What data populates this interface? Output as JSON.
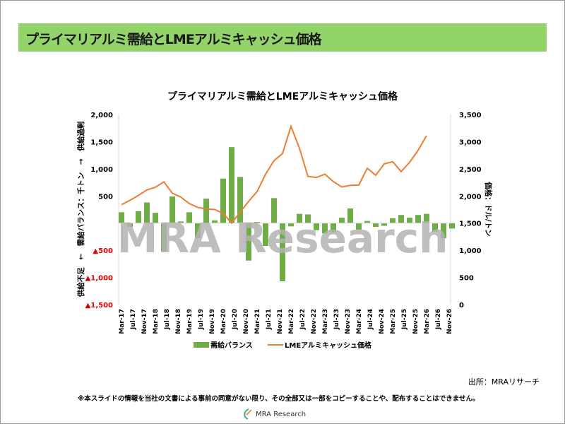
{
  "slide_title": "プライマリアルミ需給とLMEアルミキャッシュ価格",
  "source": "出所：MRAリサーチ",
  "disclaimer": "※本スライドの情報を当社の文書による事前の同意がない限り、その全部又は一部をコピーすることや、配布することはできません。",
  "logo_text": "MRA Research",
  "watermark": "MRA Research",
  "chart_data": {
    "type": "bar+line",
    "title": "プライマリアルミ需給とLMEアルミキャッシュ価格",
    "ylabel_left": "供給不足　←　需給バランス：千トン　→　供給過剰",
    "ylabel_right": "価格：ドル/トン",
    "ylim_left": [
      -1500,
      2000
    ],
    "ylim_right": [
      0,
      3500
    ],
    "left_ticks": [
      "2,000",
      "1,500",
      "1,000",
      "500",
      "",
      "▲500",
      "▲1,000",
      "▲1,500"
    ],
    "left_tick_values": [
      2000,
      1500,
      1000,
      500,
      0,
      -500,
      -1000,
      -1500
    ],
    "right_ticks": [
      "3,500",
      "3,000",
      "2,500",
      "2,000",
      "1,500",
      "1,000",
      "500",
      "0"
    ],
    "right_tick_values": [
      3500,
      3000,
      2500,
      2000,
      1500,
      1000,
      500,
      0
    ],
    "x_tick_labels": [
      "Mar-17",
      "Jul-17",
      "Nov-17",
      "Mar-18",
      "Jul-18",
      "Nov-18",
      "Mar-19",
      "Jul-19",
      "Nov-19",
      "Mar-20",
      "Jul-20",
      "Nov-20",
      "Mar-21",
      "Jul-21",
      "Nov-21",
      "Mar-22",
      "Jul-22",
      "Nov-22",
      "Mar-23",
      "Jul-23",
      "Nov-23",
      "Mar-24",
      "Jul-24",
      "Nov-24",
      "Mar-25",
      "Jul-25",
      "Nov-25",
      "Mar-26",
      "Jul-26",
      "Nov-26"
    ],
    "x_note": "quarterly data starting Mar-17",
    "legend_position": "bottom",
    "series": [
      {
        "name": "需給バランス",
        "type": "bar",
        "axis": "left",
        "color": "#70ad47",
        "values": [
          200,
          -70,
          220,
          380,
          190,
          -520,
          490,
          30,
          200,
          -280,
          450,
          50,
          820,
          1400,
          850,
          -690,
          20,
          -420,
          460,
          -1070,
          -60,
          170,
          160,
          -130,
          -190,
          -170,
          100,
          270,
          -120,
          40,
          -70,
          -50,
          90,
          150,
          100,
          150,
          170,
          -160,
          -280,
          -100
        ]
      },
      {
        "name": "LMEアルミキャッシュ価格",
        "type": "line",
        "axis": "right",
        "color": "#ed7d31",
        "values": [
          1840,
          1920,
          2010,
          2110,
          2160,
          2260,
          2050,
          1980,
          1860,
          1790,
          1760,
          1750,
          1680,
          1500,
          1700,
          1900,
          2080,
          2400,
          2650,
          2780,
          3280,
          2880,
          2360,
          2340,
          2400,
          2265,
          2165,
          2195,
          2200,
          2510,
          2380,
          2590,
          2630,
          2450,
          2620,
          2840,
          3110
        ]
      }
    ]
  }
}
